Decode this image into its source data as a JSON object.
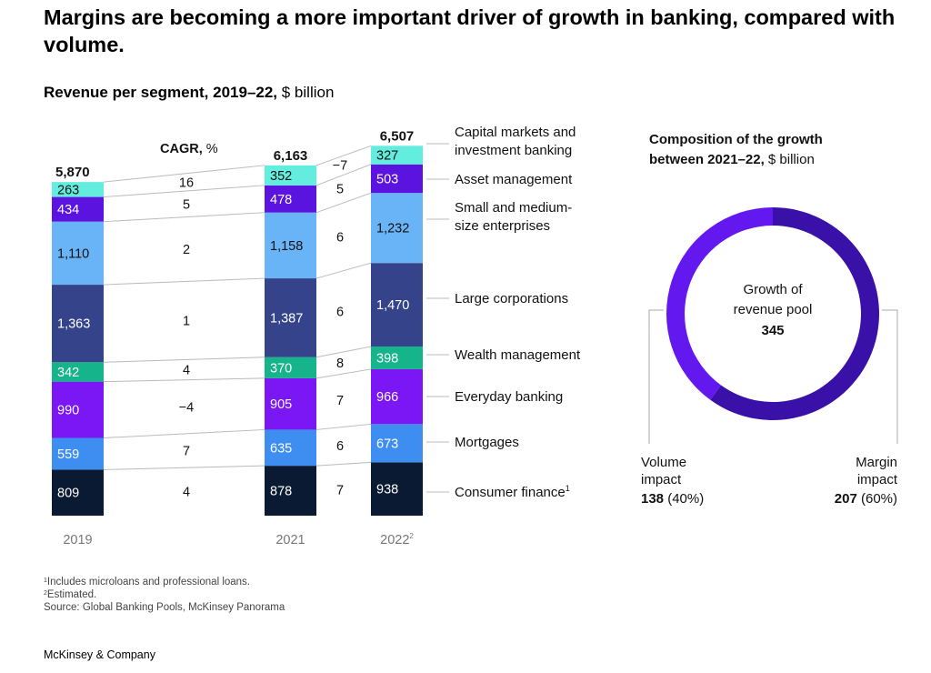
{
  "title": "Margins are becoming a more important driver of growth in banking, compared with volume.",
  "subtitle": {
    "bold": "Revenue per segment, 2019–22,",
    "unit": " $ billion"
  },
  "chart_data": [
    {
      "type": "bar",
      "stacked": true,
      "categories": [
        "2019",
        "2021",
        "2022"
      ],
      "category_footnotes": [
        "",
        "",
        "2"
      ],
      "totals": [
        "5,870",
        "6,163",
        "6,507"
      ],
      "cagr_header": {
        "bold": "CAGR,",
        "unit": " %"
      },
      "series": [
        {
          "name": "Consumer finance",
          "footnote": "1",
          "color": "#0b1a33",
          "values": [
            809,
            878,
            938
          ],
          "cagr": [
            "4",
            "7"
          ]
        },
        {
          "name": "Mortgages",
          "footnote": "",
          "color": "#3d8ef0",
          "values": [
            559,
            635,
            673
          ],
          "cagr": [
            "7",
            "6"
          ]
        },
        {
          "name": "Everyday banking",
          "footnote": "",
          "color": "#7b16f5",
          "values": [
            990,
            905,
            966
          ],
          "cagr": [
            "−4",
            "7"
          ]
        },
        {
          "name": "Wealth management",
          "footnote": "",
          "color": "#15b48b",
          "values": [
            342,
            370,
            398
          ],
          "cagr": [
            "4",
            "8"
          ]
        },
        {
          "name": "Large corporations",
          "footnote": "",
          "color": "#34438a",
          "values": [
            1363,
            1387,
            1470
          ],
          "cagr": [
            "1",
            "6"
          ]
        },
        {
          "name": "Small and medium-size enterprises",
          "label_lines": [
            "Small and medium-",
            "size enterprises"
          ],
          "footnote": "",
          "color": "#69b4f7",
          "values": [
            1110,
            1158,
            1232
          ],
          "cagr": [
            "2",
            "6"
          ]
        },
        {
          "name": "Asset management",
          "footnote": "",
          "color": "#5b14e0",
          "values": [
            434,
            478,
            503
          ],
          "cagr": [
            "5",
            "5"
          ]
        },
        {
          "name": "Capital markets and investment banking",
          "label_lines": [
            "Capital markets and",
            "investment banking"
          ],
          "footnote": "",
          "color": "#62eddf",
          "values": [
            263,
            352,
            327
          ],
          "cagr": [
            "16",
            "−7"
          ]
        }
      ]
    },
    {
      "type": "pie",
      "donut": true,
      "title": {
        "bold_lines": [
          "Composition of the growth",
          "between 2021–22,"
        ],
        "unit": " $ billion"
      },
      "center": {
        "lines": [
          "Growth of",
          "revenue pool"
        ],
        "value": "345"
      },
      "slices": [
        {
          "name": "Volume impact",
          "label_lines": [
            "Volume",
            "impact"
          ],
          "value": 138,
          "value_text": "138",
          "percent_text": "(40%)",
          "color": "#6418f0"
        },
        {
          "name": "Margin impact",
          "label_lines": [
            "Margin",
            "impact"
          ],
          "value": 207,
          "value_text": "207",
          "percent_text": "(60%)",
          "color": "#3a11a8"
        }
      ]
    }
  ],
  "footnotes": [
    {
      "mark": "1",
      "text": "Includes microloans and professional loans."
    },
    {
      "mark": "2",
      "text": "Estimated."
    },
    {
      "mark": "",
      "text": " Source: Global Banking Pools, McKinsey Panorama"
    }
  ],
  "brand": "McKinsey & Company"
}
